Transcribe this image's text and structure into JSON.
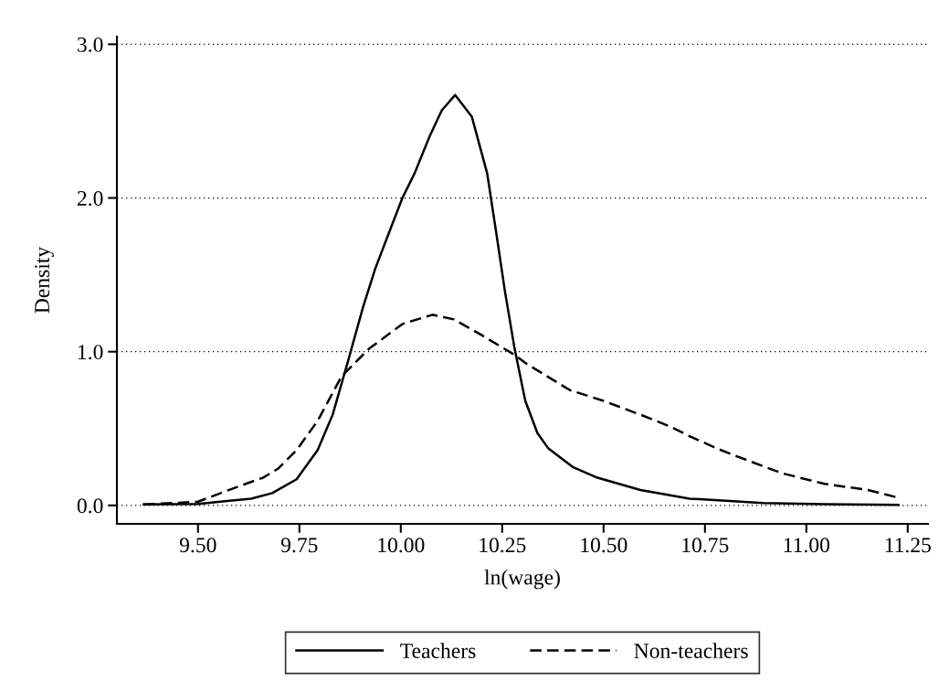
{
  "chart_data": {
    "type": "line",
    "xlabel": "ln(wage)",
    "ylabel": "Density",
    "xlim": [
      9.3,
      11.3
    ],
    "ylim": [
      -0.12,
      3.05
    ],
    "xticks": [
      {
        "value": 9.5,
        "label": "9.50"
      },
      {
        "value": 9.75,
        "label": "9.75"
      },
      {
        "value": 10.0,
        "label": "10.00"
      },
      {
        "value": 10.25,
        "label": "10.25"
      },
      {
        "value": 10.5,
        "label": "10.50"
      },
      {
        "value": 10.75,
        "label": "10.75"
      },
      {
        "value": 11.0,
        "label": "11.00"
      },
      {
        "value": 11.25,
        "label": "11.25"
      }
    ],
    "yticks": [
      {
        "value": 0,
        "label": "0.0"
      },
      {
        "value": 1,
        "label": "1.0"
      },
      {
        "value": 2,
        "label": "2.0"
      },
      {
        "value": 3,
        "label": "3.0"
      }
    ],
    "grid": "y",
    "legend": "bottom",
    "marker": "none",
    "series": [
      {
        "name": "Teachers",
        "color": "#000000",
        "line_style": "solid",
        "x": [
          9.366,
          9.5,
          9.631,
          9.683,
          9.743,
          9.795,
          9.832,
          9.869,
          9.907,
          9.937,
          9.966,
          10.004,
          10.034,
          10.071,
          10.101,
          10.134,
          10.175,
          10.213,
          10.235,
          10.257,
          10.28,
          10.307,
          10.337,
          10.364,
          10.424,
          10.485,
          10.591,
          10.712,
          10.894,
          11.045,
          11.227
        ],
        "values": [
          0.006,
          0.01,
          0.044,
          0.08,
          0.17,
          0.36,
          0.59,
          0.93,
          1.29,
          1.54,
          1.74,
          2.0,
          2.16,
          2.4,
          2.57,
          2.67,
          2.53,
          2.16,
          1.78,
          1.39,
          1.03,
          0.68,
          0.47,
          0.37,
          0.25,
          0.18,
          0.1,
          0.044,
          0.016,
          0.008,
          0.004
        ]
      },
      {
        "name": "Non-teachers",
        "color": "#000000",
        "line_style": "dashed",
        "x": [
          9.366,
          9.5,
          9.586,
          9.66,
          9.698,
          9.743,
          9.795,
          9.854,
          9.922,
          10.004,
          10.078,
          10.131,
          10.198,
          10.28,
          10.311,
          10.417,
          10.5,
          10.591,
          10.667,
          10.712,
          10.78,
          10.818,
          10.939,
          11.045,
          11.152,
          11.227
        ],
        "values": [
          0.006,
          0.024,
          0.11,
          0.18,
          0.24,
          0.36,
          0.55,
          0.84,
          1.02,
          1.18,
          1.24,
          1.21,
          1.11,
          0.98,
          0.92,
          0.75,
          0.68,
          0.59,
          0.51,
          0.45,
          0.37,
          0.33,
          0.21,
          0.14,
          0.1,
          0.05
        ]
      }
    ]
  }
}
